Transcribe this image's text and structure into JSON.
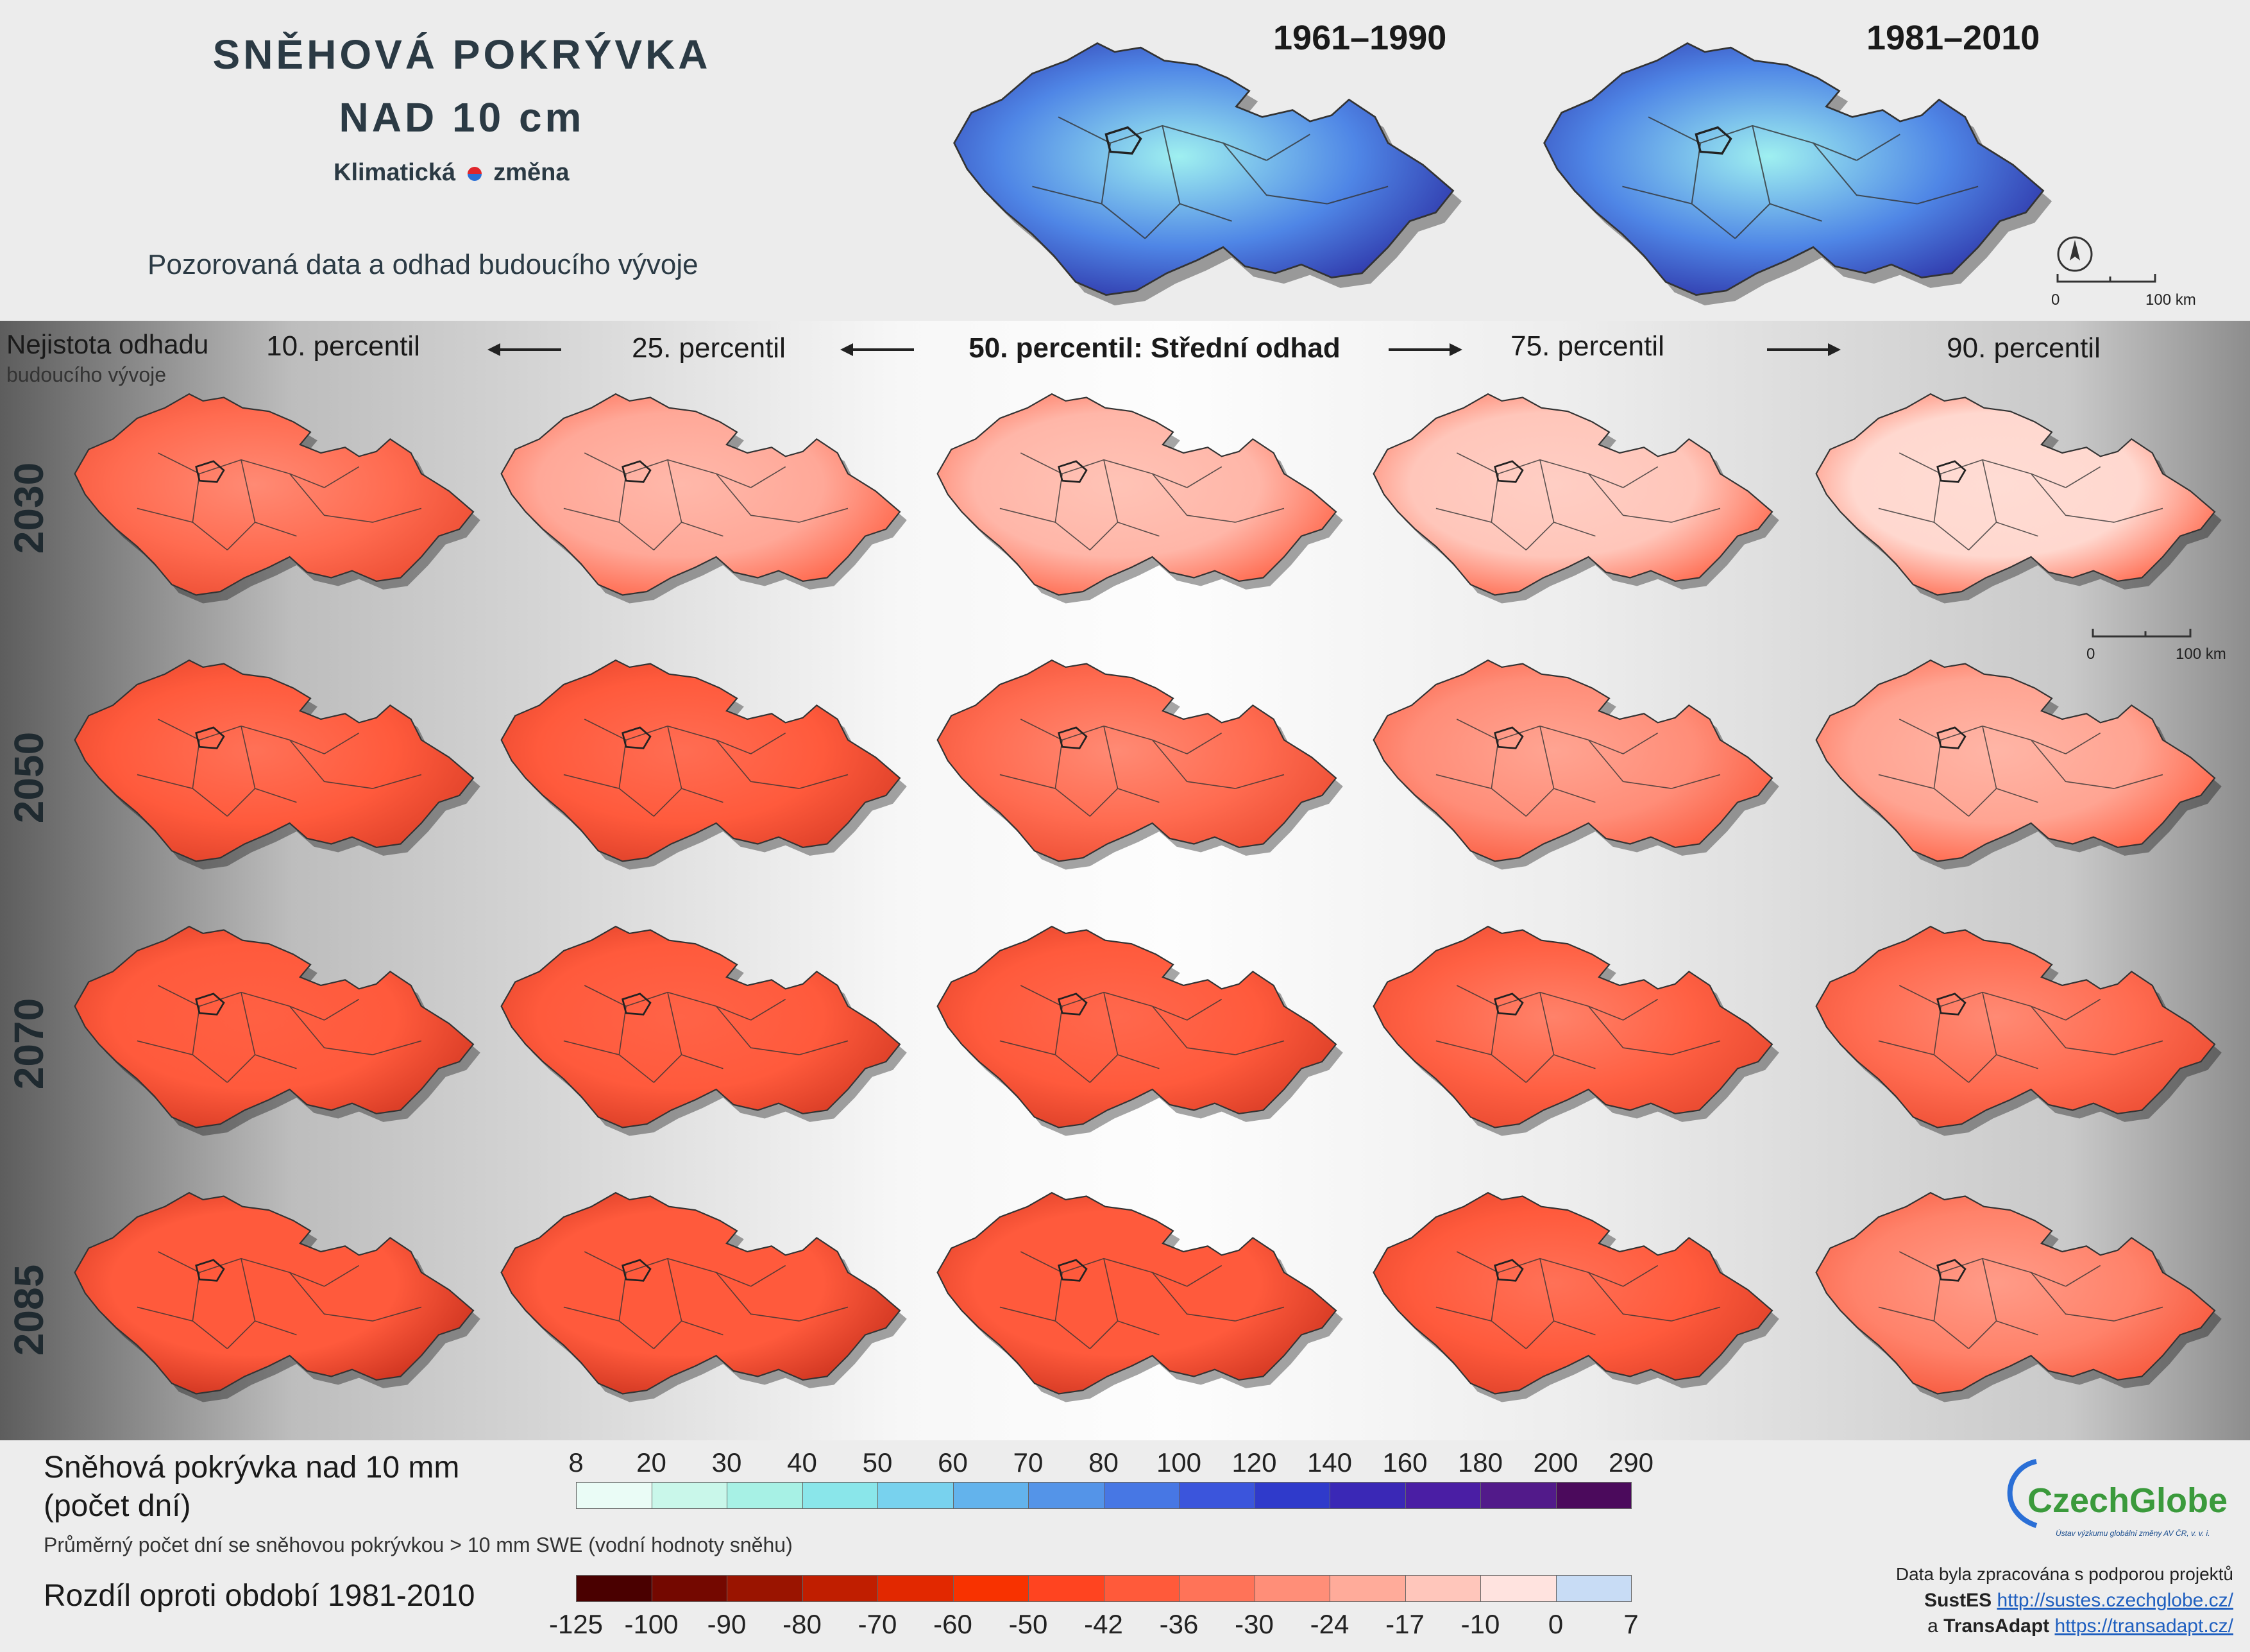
{
  "header": {
    "title_line1": "SNĚHOVÁ POKRÝVKA",
    "title_line2": "NAD 10 cm",
    "logo_word1": "Klimatická",
    "logo_word2": "změna",
    "subtitle": "Pozorovaná data a odhad budoucího vývoje",
    "observed_periods": [
      "1961–1990",
      "1981–2010"
    ]
  },
  "grid": {
    "uncertainty_label": "Nejistota odhadu",
    "uncertainty_sub": "budoucího vývoje",
    "columns": [
      "10. percentil",
      "25. percentil",
      "50. percentil: Střední odhad",
      "75. percentil",
      "90. percentil"
    ],
    "rows": [
      "2030",
      "2050",
      "2070",
      "2085"
    ],
    "arrow_icon": "arrow-icon",
    "north_icon": "north-arrow-icon"
  },
  "scale_bar": {
    "start": "0",
    "end": "100 km"
  },
  "legend": {
    "snow_title_line1": "Sněhová pokrývka nad 10 mm",
    "snow_title_line2": "(počet dní)",
    "snow_note": "Průměrný počet dní se sněhovou pokrývkou > 10 mm SWE (vodní hodnoty sněhu)",
    "snow_ticks": [
      "8",
      "20",
      "30",
      "40",
      "50",
      "60",
      "70",
      "80",
      "100",
      "120",
      "140",
      "160",
      "180",
      "200",
      "290"
    ],
    "snow_colors": [
      "#eafcf6",
      "#c9f7ea",
      "#a7f1e5",
      "#8ae6ea",
      "#78d2ee",
      "#63b3ec",
      "#5494e8",
      "#4777e4",
      "#3b55dc",
      "#2f3acb",
      "#3a28b6",
      "#4a1ea4",
      "#521a8a",
      "#4b0a5c"
    ],
    "diff_title": "Rozdíl oproti období 1981-2010",
    "diff_ticks": [
      "-125",
      "-100",
      "-90",
      "-80",
      "-70",
      "-60",
      "-50",
      "-42",
      "-36",
      "-30",
      "-24",
      "-17",
      "-10",
      "0",
      "7"
    ],
    "diff_colors": [
      "#4a0000",
      "#740800",
      "#9a1400",
      "#c01e00",
      "#e22800",
      "#f83200",
      "#ff4420",
      "#ff5a3a",
      "#ff7358",
      "#ff8e78",
      "#ffab9a",
      "#ffc6bb",
      "#ffe3df",
      "#c8dcf5"
    ]
  },
  "credits": {
    "org": "CzechGlobe",
    "org_sub": "Ústav výzkumu globální změny AV ČR, v. v. i.",
    "line1": "Data byla zpracována s podporou projektů",
    "project1": "SustES",
    "url1": "http://sustes.czechglobe.cz/",
    "and": "a",
    "project2": "TransAdapt",
    "url2": "https://transadapt.cz/"
  },
  "map_data": {
    "observed_scale": "blue (days of snow cover)",
    "future_scale": "red (difference vs 1981-2010)",
    "intensity_by_row_col": [
      [
        0.55,
        0.28,
        0.22,
        0.15,
        0.07
      ],
      [
        0.7,
        0.72,
        0.55,
        0.4,
        0.3
      ],
      [
        0.8,
        0.78,
        0.75,
        0.6,
        0.55
      ],
      [
        0.92,
        0.9,
        0.85,
        0.7,
        0.45
      ]
    ]
  }
}
